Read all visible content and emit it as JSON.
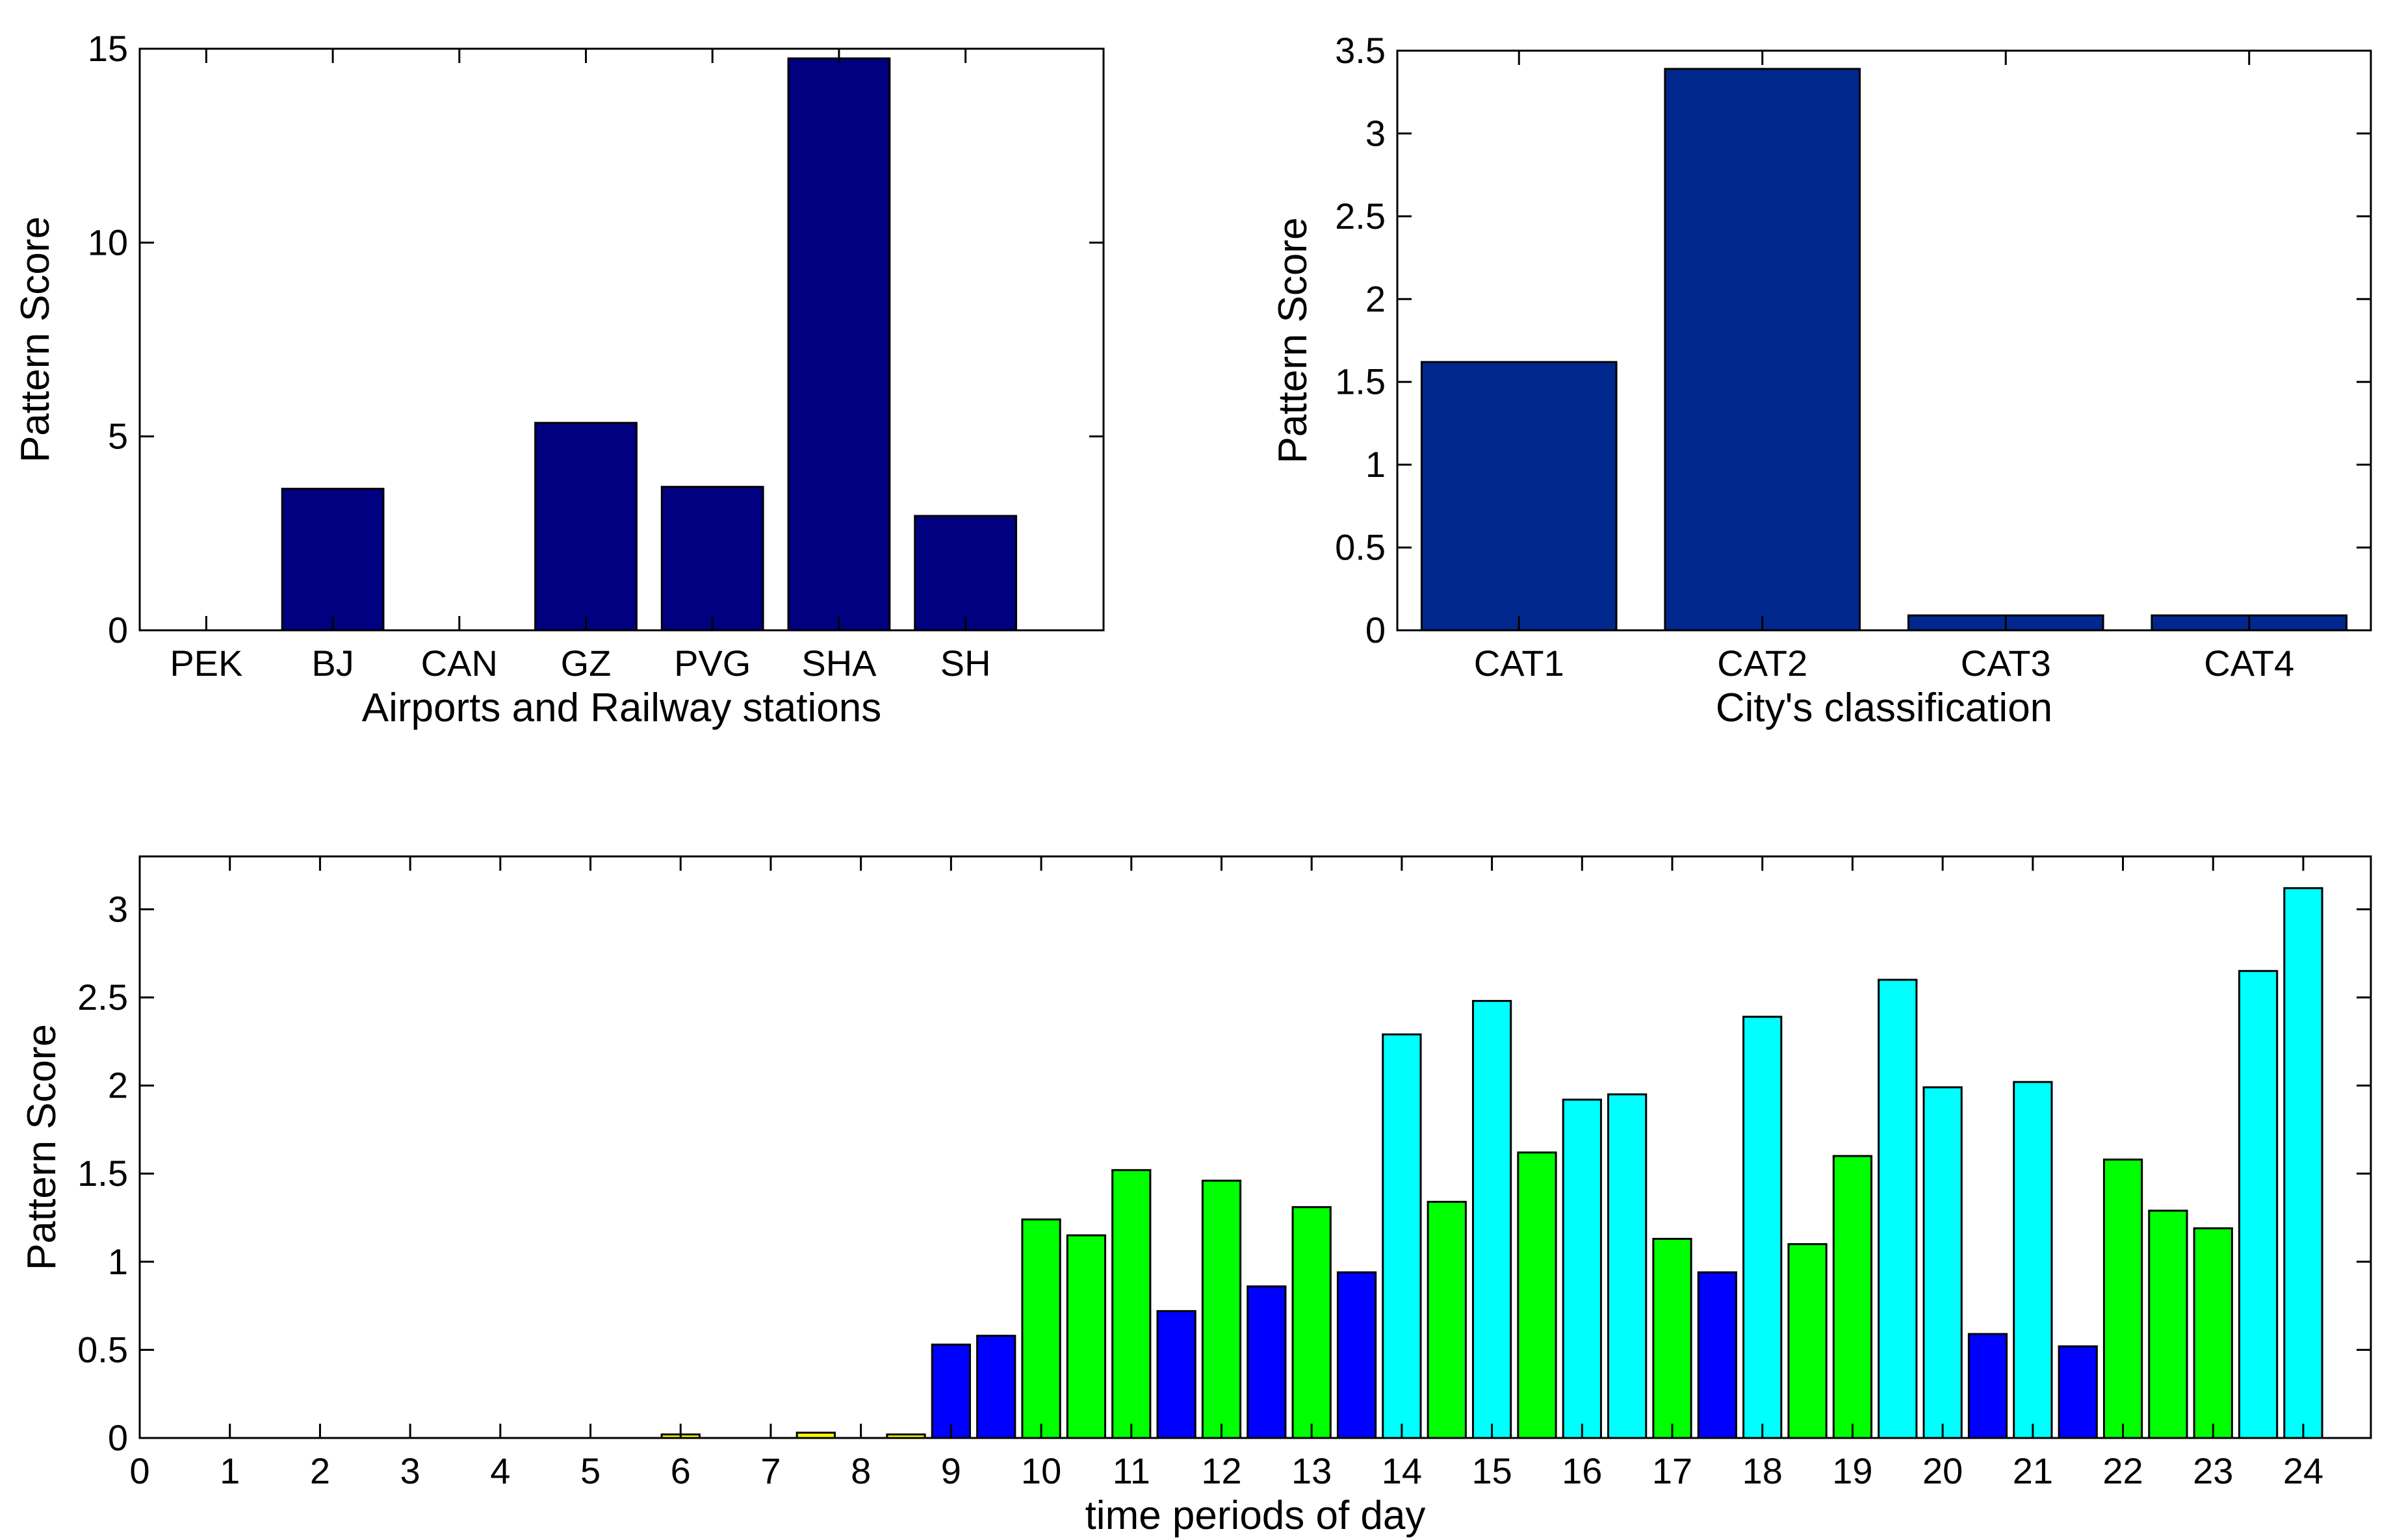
{
  "chart_data": [
    {
      "type": "bar",
      "title": "",
      "xlabel": "Airports and Railway stations",
      "ylabel": "Pattern Score",
      "categories": [
        "PEK",
        "BJ",
        "CAN",
        "GZ",
        "PVG",
        "SHA",
        "SH"
      ],
      "values": [
        0,
        3.65,
        0,
        5.35,
        3.7,
        14.75,
        2.95
      ],
      "ylim": [
        0,
        15
      ],
      "yticks": [
        "0",
        "5",
        "10",
        "15"
      ],
      "color": "#000080"
    },
    {
      "type": "bar",
      "title": "",
      "xlabel": "City's classification",
      "ylabel": "Pattern Score",
      "categories": [
        "CAT1",
        "CAT2",
        "CAT3",
        "CAT4"
      ],
      "values": [
        1.62,
        3.39,
        0.09,
        0.09
      ],
      "ylim": [
        0,
        3.5
      ],
      "yticks": [
        "0",
        "0.5",
        "1",
        "1.5",
        "2",
        "2.5",
        "3",
        "3.5"
      ],
      "color": "#00288C"
    },
    {
      "type": "bar",
      "title": "",
      "xlabel": "time periods of day",
      "ylabel": "Pattern Score",
      "xlim": [
        0,
        24.75
      ],
      "ylim": [
        0,
        3.3
      ],
      "xticks": [
        "0",
        "1",
        "2",
        "3",
        "4",
        "5",
        "6",
        "7",
        "8",
        "9",
        "10",
        "11",
        "12",
        "13",
        "14",
        "15",
        "16",
        "17",
        "18",
        "19",
        "20",
        "21",
        "22",
        "23",
        "24"
      ],
      "yticks": [
        "0",
        "0.5",
        "1",
        "1.5",
        "2",
        "2.5",
        "3"
      ],
      "bars": [
        {
          "x": 6,
          "value": 0.02,
          "group": "yellow"
        },
        {
          "x": 7.5,
          "value": 0.03,
          "group": "yellow"
        },
        {
          "x": 8.5,
          "value": 0.02,
          "group": "yellow"
        },
        {
          "x": 9,
          "value": 0.53,
          "group": "blue"
        },
        {
          "x": 9.5,
          "value": 0.58,
          "group": "blue"
        },
        {
          "x": 10,
          "value": 1.24,
          "group": "green"
        },
        {
          "x": 10.5,
          "value": 1.15,
          "group": "green"
        },
        {
          "x": 11,
          "value": 1.52,
          "group": "green"
        },
        {
          "x": 11.5,
          "value": 0.72,
          "group": "blue"
        },
        {
          "x": 12,
          "value": 1.46,
          "group": "green"
        },
        {
          "x": 12.5,
          "value": 0.86,
          "group": "blue"
        },
        {
          "x": 13,
          "value": 1.31,
          "group": "green"
        },
        {
          "x": 13.5,
          "value": 0.94,
          "group": "blue"
        },
        {
          "x": 14,
          "value": 2.29,
          "group": "cyan"
        },
        {
          "x": 14.5,
          "value": 1.34,
          "group": "green"
        },
        {
          "x": 15,
          "value": 2.48,
          "group": "cyan"
        },
        {
          "x": 15.5,
          "value": 1.62,
          "group": "green"
        },
        {
          "x": 16,
          "value": 1.92,
          "group": "cyan"
        },
        {
          "x": 16.5,
          "value": 1.95,
          "group": "cyan"
        },
        {
          "x": 17,
          "value": 1.13,
          "group": "green"
        },
        {
          "x": 17.5,
          "value": 0.94,
          "group": "blue"
        },
        {
          "x": 18,
          "value": 2.39,
          "group": "cyan"
        },
        {
          "x": 18.5,
          "value": 1.1,
          "group": "green"
        },
        {
          "x": 19,
          "value": 1.6,
          "group": "green"
        },
        {
          "x": 19.5,
          "value": 2.6,
          "group": "cyan"
        },
        {
          "x": 20,
          "value": 1.99,
          "group": "cyan"
        },
        {
          "x": 20.5,
          "value": 0.59,
          "group": "blue"
        },
        {
          "x": 21,
          "value": 2.02,
          "group": "cyan"
        },
        {
          "x": 21.5,
          "value": 0.52,
          "group": "blue"
        },
        {
          "x": 22,
          "value": 1.58,
          "group": "green"
        },
        {
          "x": 22.5,
          "value": 1.29,
          "group": "green"
        },
        {
          "x": 23,
          "value": 1.19,
          "group": "green"
        },
        {
          "x": 23.5,
          "value": 2.65,
          "group": "cyan"
        },
        {
          "x": 24,
          "value": 3.12,
          "group": "cyan"
        }
      ],
      "group_colors": {
        "yellow": "#FFFF00",
        "blue": "#0000FF",
        "green": "#00FF00",
        "cyan": "#00FFFF"
      }
    }
  ]
}
